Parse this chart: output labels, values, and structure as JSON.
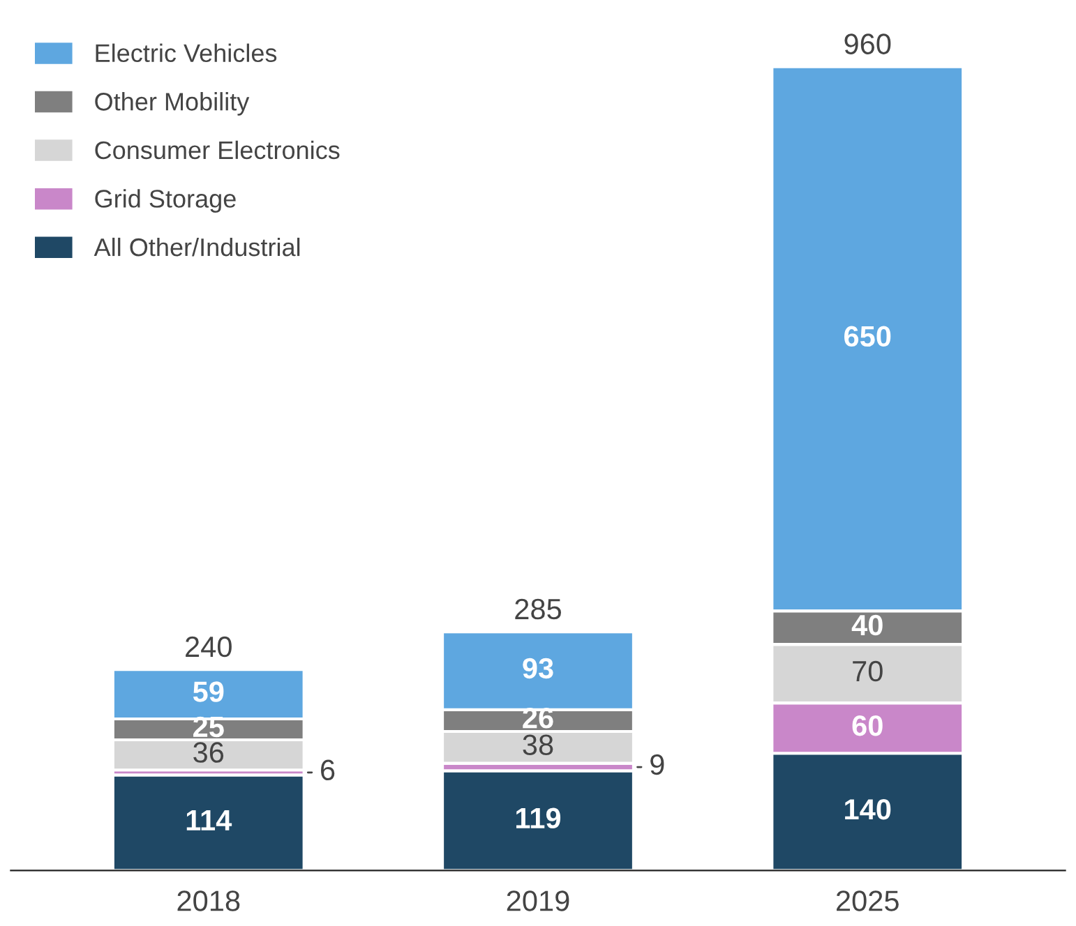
{
  "chart_data": {
    "type": "bar",
    "stacked": true,
    "categories": [
      "2018",
      "2019",
      "2025"
    ],
    "series": [
      {
        "name": "All Other/Industrial",
        "color": "#1f4865",
        "values": [
          114,
          119,
          140
        ]
      },
      {
        "name": "Grid Storage",
        "color": "#c987c9",
        "values": [
          6,
          9,
          60
        ]
      },
      {
        "name": "Consumer Electronics",
        "color": "#d6d6d6",
        "values": [
          36,
          38,
          70
        ]
      },
      {
        "name": "Other Mobility",
        "color": "#7f7f7f",
        "values": [
          25,
          26,
          40
        ]
      },
      {
        "name": "Electric Vehicles",
        "color": "#5ea7e0",
        "values": [
          59,
          93,
          650
        ]
      }
    ],
    "totals": [
      "240",
      "285",
      "960"
    ],
    "data_labels": true,
    "legend": "top left",
    "grid": false
  }
}
